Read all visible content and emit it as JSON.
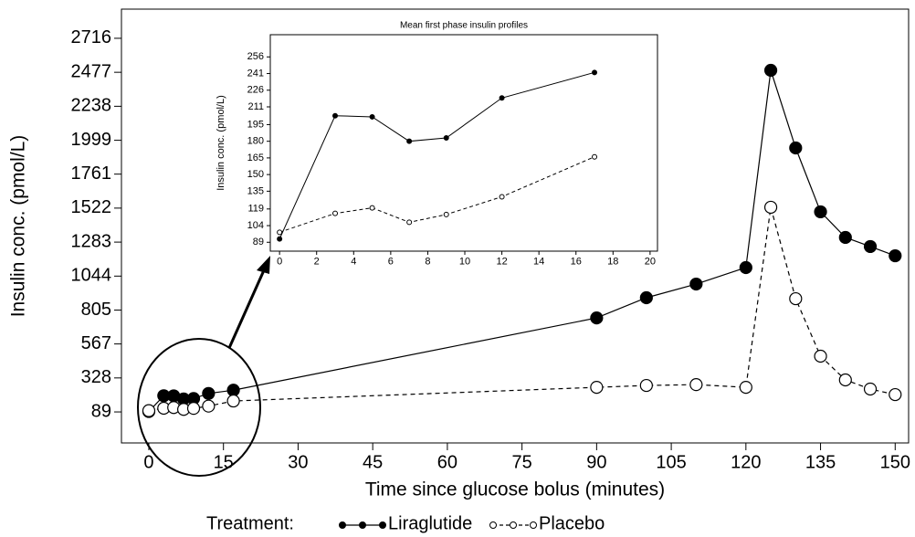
{
  "chart_data": [
    {
      "type": "line",
      "x_label": "Time since glucose bolus (minutes)",
      "y_label": "Insulin conc. (pmol/L)",
      "legend_title": "Treatment:",
      "xlim": [
        -5.5,
        152.7
      ],
      "xticks": [
        0,
        15,
        30,
        45,
        60,
        75,
        90,
        105,
        120,
        135,
        150
      ],
      "ylim": [
        -129,
        2921
      ],
      "yticks": [
        89,
        328,
        567,
        805,
        1044,
        1283,
        1522,
        1761,
        1999,
        2238,
        2477,
        2716
      ],
      "x": [
        0,
        3,
        5,
        7,
        9,
        12,
        17,
        90,
        100,
        110,
        120,
        125,
        130,
        135,
        140,
        145,
        150
      ],
      "series": [
        {
          "name": "Liraglutide",
          "color": "#000000",
          "line_style": "solid",
          "marker": "filled",
          "values": [
            92,
            203,
            202,
            180,
            183,
            219,
            242,
            750,
            892,
            988,
            1104,
            2491,
            1945,
            1496,
            1316,
            1252,
            1187
          ]
        },
        {
          "name": "Placebo",
          "color": "#000000",
          "line_style": "dashed",
          "marker": "open",
          "values": [
            98,
            115,
            120,
            107,
            114,
            130,
            166,
            262,
            275,
            281,
            262,
            1528,
            885,
            481,
            314,
            250,
            211
          ]
        }
      ]
    },
    {
      "type": "line",
      "title": "Mean first phase insulin profiles",
      "y_label": "Insulin conc. (pmol/L)",
      "xlim": [
        -0.5,
        20.4
      ],
      "xticks": [
        0,
        2,
        4,
        6,
        8,
        10,
        12,
        14,
        16,
        18,
        20
      ],
      "ylim": [
        81,
        276
      ],
      "yticks": [
        89,
        104,
        119,
        135,
        150,
        165,
        180,
        195,
        211,
        226,
        241,
        256
      ],
      "x": [
        0,
        3,
        5,
        7,
        9,
        12,
        17
      ],
      "series": [
        {
          "name": "Liraglutide",
          "color": "#000000",
          "line_style": "solid",
          "marker": "filled",
          "values": [
            92,
            203,
            202,
            180,
            183,
            219,
            242
          ]
        },
        {
          "name": "Placebo",
          "color": "#000000",
          "line_style": "dashed",
          "marker": "open",
          "values": [
            98,
            115,
            120,
            107,
            114,
            130,
            166
          ]
        }
      ]
    }
  ]
}
